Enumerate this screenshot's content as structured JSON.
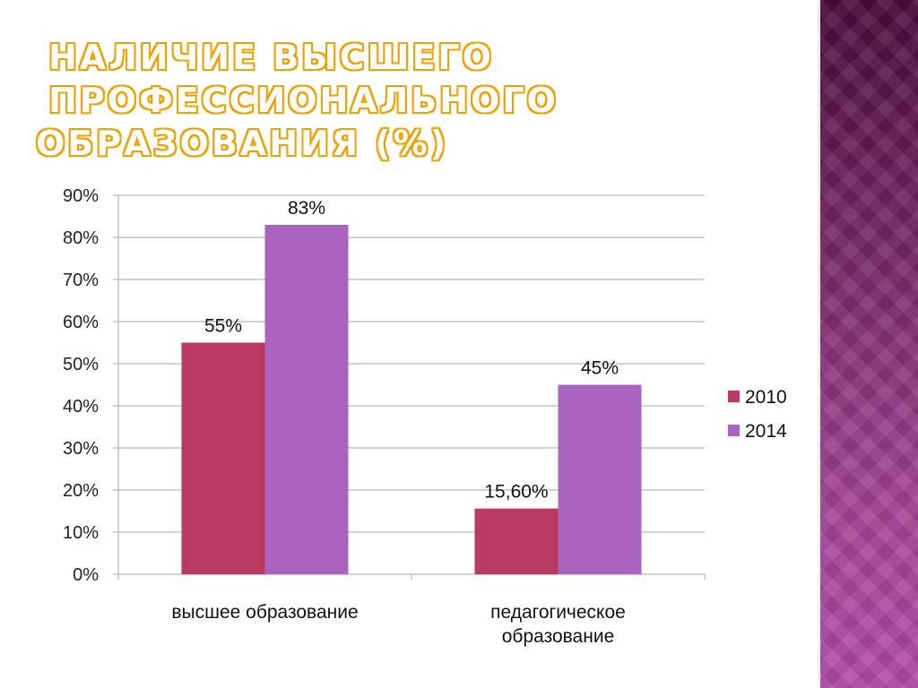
{
  "title": {
    "line1": "НАЛИЧИЕ ВЫСШЕГО ПРОФЕССИОНАЛЬНОГО",
    "line2": "ОБРАЗОВАНИЯ (%)"
  },
  "chart_data": {
    "type": "bar",
    "categories": [
      [
        "высшее образование"
      ],
      [
        "педагогическое",
        "образование"
      ]
    ],
    "series": [
      {
        "name": "2010",
        "values": [
          55,
          15.6
        ],
        "labels": [
          "55%",
          "15,60%"
        ],
        "color": "#b83a63"
      },
      {
        "name": "2014",
        "values": [
          83,
          45
        ],
        "labels": [
          "83%",
          "45%"
        ],
        "color": "#a964bf"
      }
    ],
    "yticks": [
      "0%",
      "10%",
      "20%",
      "30%",
      "40%",
      "50%",
      "60%",
      "70%",
      "80%",
      "90%"
    ],
    "ylim": [
      0,
      90
    ],
    "grid": true,
    "legend": "right"
  },
  "colors": {
    "title_outline": "#f0a000",
    "grid": "#a6a6a6",
    "panel": "#7a2a6a"
  }
}
